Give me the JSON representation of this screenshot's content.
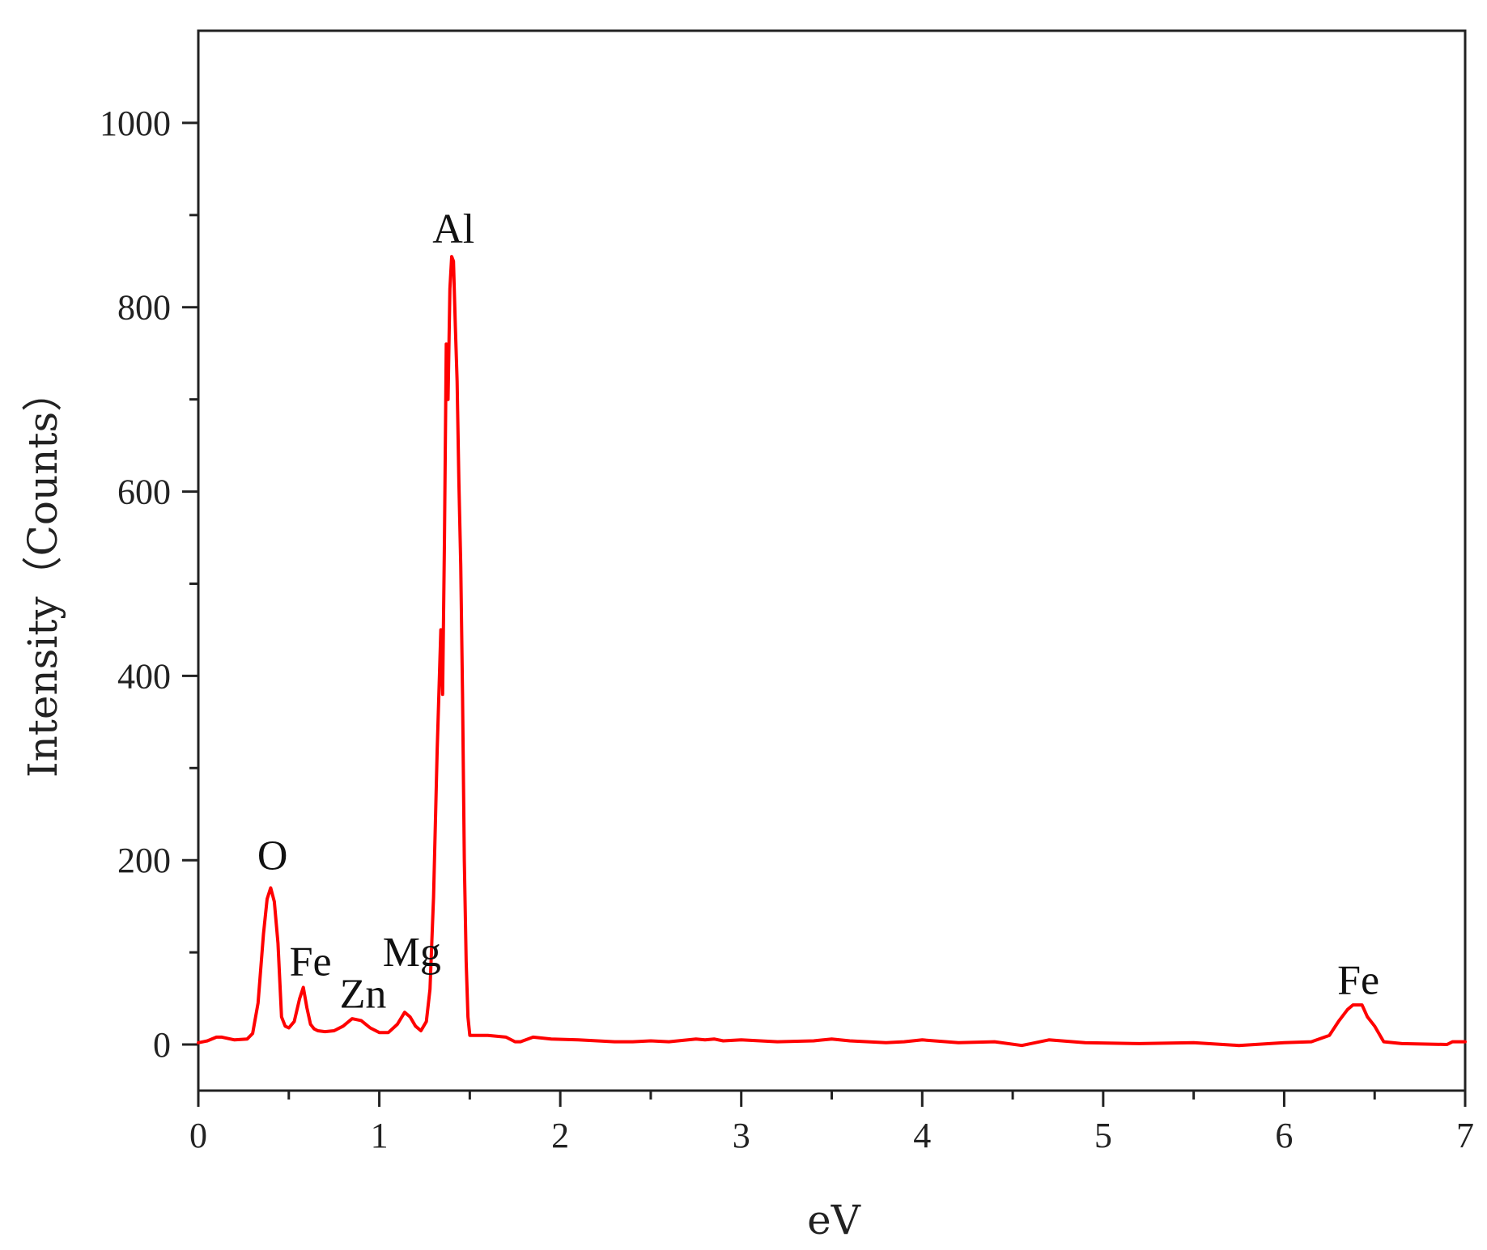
{
  "chart_data": {
    "type": "line",
    "title": "",
    "xlabel": "eV",
    "ylabel": "Intensity（Counts）",
    "xlim": [
      0,
      7
    ],
    "ylim": [
      -50,
      1100
    ],
    "x_ticks": [
      0,
      1,
      2,
      3,
      4,
      5,
      6,
      7
    ],
    "y_ticks": [
      0,
      200,
      400,
      600,
      800,
      1000
    ],
    "grid": false,
    "legend": "none",
    "series": [
      {
        "color": "#ff0000",
        "x": [
          0.0,
          0.05,
          0.1,
          0.13,
          0.2,
          0.27,
          0.3,
          0.33,
          0.36,
          0.38,
          0.4,
          0.42,
          0.44,
          0.46,
          0.48,
          0.5,
          0.53,
          0.56,
          0.58,
          0.6,
          0.62,
          0.64,
          0.66,
          0.7,
          0.75,
          0.8,
          0.85,
          0.9,
          0.95,
          1.0,
          1.05,
          1.1,
          1.14,
          1.17,
          1.2,
          1.23,
          1.26,
          1.28,
          1.3,
          1.32,
          1.34,
          1.35,
          1.36,
          1.37,
          1.38,
          1.39,
          1.4,
          1.41,
          1.42,
          1.43,
          1.44,
          1.45,
          1.46,
          1.47,
          1.48,
          1.49,
          1.5,
          1.52,
          1.54,
          1.6,
          1.7,
          1.75,
          1.78,
          1.85,
          1.95,
          2.1,
          2.3,
          2.4,
          2.5,
          2.6,
          2.75,
          2.8,
          2.85,
          2.9,
          3.0,
          3.2,
          3.4,
          3.5,
          3.6,
          3.7,
          3.8,
          3.9,
          4.0,
          4.2,
          4.4,
          4.55,
          4.7,
          4.9,
          5.2,
          5.5,
          5.75,
          6.0,
          6.15,
          6.25,
          6.3,
          6.35,
          6.38,
          6.4,
          6.43,
          6.46,
          6.5,
          6.55,
          6.65,
          6.9,
          6.93,
          7.0
        ],
        "y": [
          2,
          4,
          8,
          8,
          5,
          6,
          12,
          45,
          120,
          158,
          170,
          155,
          110,
          30,
          20,
          18,
          25,
          50,
          62,
          40,
          22,
          17,
          15,
          14,
          15,
          20,
          28,
          26,
          18,
          13,
          13,
          22,
          35,
          30,
          20,
          15,
          25,
          60,
          160,
          320,
          450,
          380,
          550,
          760,
          700,
          820,
          855,
          850,
          780,
          720,
          610,
          520,
          380,
          200,
          90,
          30,
          10,
          10,
          10,
          10,
          8,
          3,
          3,
          8,
          6,
          5,
          3,
          3,
          4,
          3,
          6,
          5,
          6,
          4,
          5,
          3,
          4,
          6,
          4,
          3,
          2,
          3,
          5,
          2,
          3,
          -1,
          5,
          2,
          1,
          2,
          -1,
          2,
          3,
          10,
          25,
          38,
          43,
          43,
          43,
          30,
          20,
          3,
          1,
          0,
          3,
          3
        ]
      }
    ],
    "annotations": [
      {
        "text": "O",
        "x": 0.41,
        "y": 190
      },
      {
        "text": "Fe",
        "x": 0.62,
        "y": 75
      },
      {
        "text": "Zn",
        "x": 0.91,
        "y": 40
      },
      {
        "text": "Mg",
        "x": 1.18,
        "y": 85
      },
      {
        "text": "Al",
        "x": 1.41,
        "y": 870
      },
      {
        "text": "Fe",
        "x": 6.41,
        "y": 55
      }
    ]
  }
}
